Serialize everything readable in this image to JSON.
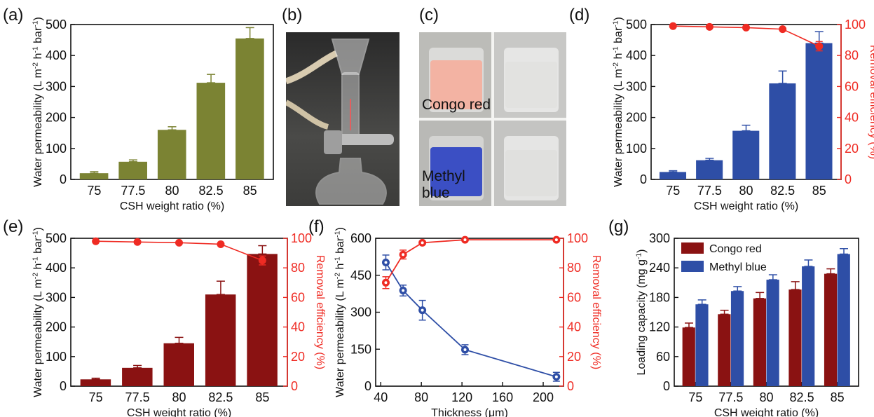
{
  "panel_labels": [
    "(a)",
    "(b)",
    "(c)",
    "(d)",
    "(e)",
    "(f)",
    "(g)"
  ],
  "photo_c": {
    "top_label": "Congo red",
    "bottom_label": "Methyl blue"
  },
  "colors": {
    "olive": "#7b8333",
    "blue": "#2e4ea6",
    "darkred": "#8a1212",
    "red": "#ef2b23",
    "congo_solution": "#f3b3a3",
    "methyl_solution": "#3b4fc4"
  },
  "chart_data": [
    {
      "id": "a",
      "type": "bar",
      "categories": [
        "75",
        "77.5",
        "80",
        "82.5",
        "85"
      ],
      "series": [
        {
          "values": [
            20,
            57,
            160,
            312,
            455
          ],
          "errors": [
            5,
            6,
            10,
            27,
            35
          ],
          "color": "#7b8333"
        }
      ],
      "xlabel": "CSH weight ratio (%)",
      "ylabel": "Water permeability (L m-2 h-1 bar-1)",
      "ylim": [
        0,
        500
      ],
      "yticks": [
        0,
        100,
        200,
        300,
        400,
        500
      ]
    },
    {
      "id": "d",
      "type": "bar",
      "categories": [
        "75",
        "77.5",
        "80",
        "82.5",
        "85"
      ],
      "series": [
        {
          "values": [
            24,
            62,
            157,
            310,
            440
          ],
          "errors": [
            4,
            6,
            18,
            40,
            37
          ],
          "color": "#2e4ea6"
        },
        {
          "type": "line",
          "axis": "right",
          "values": [
            99,
            98.5,
            98,
            97,
            86
          ],
          "errors": [
            0.5,
            0.5,
            0.5,
            0.5,
            3
          ],
          "color": "#ef2b23"
        }
      ],
      "xlabel": "CSH weight ratio (%)",
      "ylabel": "Water permeability (L m-2 h-1 bar-1)",
      "ylabel_right": "Removal efficiency (%)",
      "ylim": [
        0,
        500
      ],
      "yticks": [
        0,
        100,
        200,
        300,
        400,
        500
      ],
      "ylim_right": [
        0,
        100
      ],
      "yticks_right": [
        0,
        20,
        40,
        60,
        80,
        100
      ]
    },
    {
      "id": "e",
      "type": "bar",
      "categories": [
        "75",
        "77.5",
        "80",
        "82.5",
        "85"
      ],
      "series": [
        {
          "values": [
            23,
            62,
            145,
            310,
            447
          ],
          "errors": [
            4,
            8,
            20,
            45,
            28
          ],
          "color": "#8a1212"
        },
        {
          "type": "line",
          "axis": "right",
          "values": [
            98,
            97.5,
            97,
            96,
            85
          ],
          "errors": [
            0.5,
            0.5,
            0.5,
            0.5,
            3
          ],
          "color": "#ef2b23"
        }
      ],
      "xlabel": "CSH weight ratio (%)",
      "ylabel": "Water permeability (L m-2 h-1 bar-1)",
      "ylabel_right": "Removal efficiency (%)",
      "ylim": [
        0,
        500
      ],
      "yticks": [
        0,
        100,
        200,
        300,
        400,
        500
      ],
      "ylim_right": [
        0,
        100
      ],
      "yticks_right": [
        0,
        20,
        40,
        60,
        80,
        100
      ]
    },
    {
      "id": "f",
      "type": "line",
      "x": [
        45,
        62,
        81,
        123,
        213
      ],
      "series": [
        {
          "values": [
            502,
            388,
            308,
            148,
            38
          ],
          "errors": [
            30,
            22,
            40,
            20,
            18
          ],
          "color": "#2e4ea6"
        },
        {
          "axis": "right",
          "values": [
            70,
            89,
            97,
            99,
            99
          ],
          "errors": [
            4,
            3,
            1,
            0.5,
            0.5
          ],
          "color": "#ef2b23"
        }
      ],
      "xlabel": "Thickness (μm)",
      "ylabel": "Water permeability (L m-2 h-1 bar-1)",
      "ylabel_right": "Removal efficiency (%)",
      "xlim": [
        35,
        220
      ],
      "xticks": [
        40,
        80,
        120,
        160,
        200
      ],
      "ylim": [
        0,
        600
      ],
      "yticks": [
        0,
        150,
        300,
        450,
        600
      ],
      "ylim_right": [
        0,
        100
      ],
      "yticks_right": [
        0,
        20,
        40,
        60,
        80,
        100
      ]
    },
    {
      "id": "g",
      "type": "bar",
      "categories": [
        "75",
        "77.5",
        "80",
        "82.5",
        "85"
      ],
      "series": [
        {
          "name": "Congo red",
          "values": [
            119,
            146,
            178,
            196,
            228
          ],
          "errors": [
            9,
            8,
            12,
            16,
            10
          ],
          "color": "#8a1212"
        },
        {
          "name": "Methyl blue",
          "values": [
            166,
            193,
            216,
            243,
            268
          ],
          "errors": [
            9,
            9,
            10,
            13,
            11
          ],
          "color": "#2e4ea6"
        }
      ],
      "xlabel": "CSH weight ratio (%)",
      "ylabel": "Loading capacity (mg g-1)",
      "ylim": [
        0,
        300
      ],
      "yticks": [
        0,
        60,
        120,
        180,
        240,
        300
      ],
      "legend": "top-left"
    }
  ]
}
